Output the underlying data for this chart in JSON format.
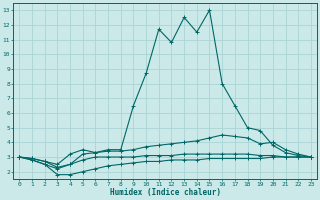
{
  "xlabel": "Humidex (Indice chaleur)",
  "ylabel": "",
  "xlim": [
    -0.5,
    23.5
  ],
  "ylim": [
    1.5,
    13.5
  ],
  "yticks": [
    2,
    3,
    4,
    5,
    6,
    7,
    8,
    9,
    10,
    11,
    12,
    13
  ],
  "xticks": [
    0,
    1,
    2,
    3,
    4,
    5,
    6,
    7,
    8,
    9,
    10,
    11,
    12,
    13,
    14,
    15,
    16,
    17,
    18,
    19,
    20,
    21,
    22,
    23
  ],
  "background_color": "#cce9e9",
  "grid_color": "#aad4d4",
  "line_color": "#006666",
  "lines": [
    {
      "x": [
        0,
        1,
        2,
        3,
        4,
        5,
        6,
        7,
        8,
        9,
        10,
        11,
        12,
        13,
        14,
        15,
        16,
        17,
        18,
        19,
        20,
        21,
        22,
        23
      ],
      "y": [
        3.0,
        2.8,
        2.5,
        2.2,
        2.5,
        3.2,
        3.3,
        3.5,
        3.5,
        6.5,
        8.7,
        11.7,
        10.8,
        12.5,
        11.5,
        13.0,
        8.0,
        6.5,
        5.0,
        4.8,
        3.8,
        3.3,
        3.1,
        3.0
      ]
    },
    {
      "x": [
        0,
        1,
        2,
        3,
        4,
        5,
        6,
        7,
        8,
        9,
        10,
        11,
        12,
        13,
        14,
        15,
        16,
        17,
        18,
        19,
        20,
        21,
        22,
        23
      ],
      "y": [
        3.0,
        2.9,
        2.7,
        2.5,
        3.2,
        3.5,
        3.3,
        3.4,
        3.4,
        3.5,
        3.7,
        3.8,
        3.9,
        4.0,
        4.1,
        4.3,
        4.5,
        4.4,
        4.3,
        3.9,
        4.0,
        3.5,
        3.2,
        3.0
      ]
    },
    {
      "x": [
        0,
        1,
        2,
        3,
        4,
        5,
        6,
        7,
        8,
        9,
        10,
        11,
        12,
        13,
        14,
        15,
        16,
        17,
        18,
        19,
        20,
        21,
        22,
        23
      ],
      "y": [
        3.0,
        2.9,
        2.7,
        2.3,
        2.5,
        2.8,
        3.0,
        3.0,
        3.0,
        3.0,
        3.1,
        3.1,
        3.1,
        3.2,
        3.2,
        3.2,
        3.2,
        3.2,
        3.2,
        3.1,
        3.1,
        3.0,
        3.0,
        3.0
      ]
    },
    {
      "x": [
        0,
        1,
        2,
        3,
        4,
        5,
        6,
        7,
        8,
        9,
        10,
        11,
        12,
        13,
        14,
        15,
        16,
        17,
        18,
        19,
        20,
        21,
        22,
        23
      ],
      "y": [
        3.0,
        2.8,
        2.5,
        1.8,
        1.8,
        2.0,
        2.2,
        2.4,
        2.5,
        2.6,
        2.7,
        2.7,
        2.8,
        2.8,
        2.8,
        2.9,
        2.9,
        2.9,
        2.9,
        2.9,
        3.0,
        3.0,
        3.0,
        3.0
      ]
    }
  ]
}
